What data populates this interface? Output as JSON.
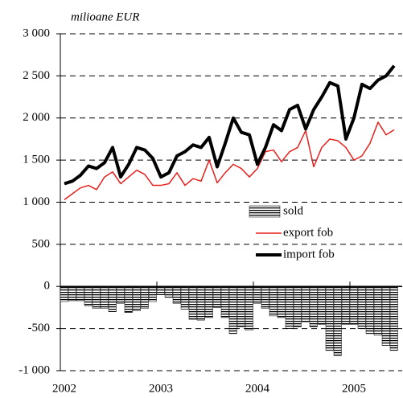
{
  "chart_data": {
    "type": "bar-line",
    "y_label": "milioane EUR",
    "categories": [
      "2002",
      null,
      null,
      null,
      null,
      null,
      null,
      null,
      null,
      null,
      null,
      null,
      "2003",
      null,
      null,
      null,
      null,
      null,
      null,
      null,
      null,
      null,
      null,
      null,
      "2004",
      null,
      null,
      null,
      null,
      null,
      null,
      null,
      null,
      null,
      null,
      null,
      "2005",
      null,
      null,
      null,
      null,
      null
    ],
    "series": [
      {
        "name": "sold",
        "type": "bar",
        "color": "#000000",
        "values": [
          -180,
          -170,
          -170,
          -230,
          -260,
          -260,
          -300,
          -200,
          -310,
          -290,
          -260,
          -180,
          -100,
          -130,
          -200,
          -270,
          -390,
          -400,
          -370,
          -250,
          -370,
          -560,
          -480,
          -520,
          -200,
          -260,
          -350,
          -370,
          -500,
          -480,
          -420,
          -480,
          -450,
          -760,
          -820,
          -450,
          -450,
          -500,
          -560,
          -580,
          -700,
          -760
        ]
      },
      {
        "name": "export fob",
        "type": "line",
        "color": "#e8201c",
        "values": [
          1030,
          1100,
          1170,
          1200,
          1150,
          1300,
          1360,
          1220,
          1300,
          1380,
          1330,
          1200,
          1200,
          1220,
          1350,
          1200,
          1280,
          1250,
          1500,
          1230,
          1350,
          1450,
          1400,
          1300,
          1400,
          1600,
          1620,
          1480,
          1600,
          1650,
          1850,
          1420,
          1650,
          1750,
          1730,
          1650,
          1500,
          1550,
          1700,
          1950,
          1800,
          1860
        ]
      },
      {
        "name": "import fob",
        "type": "line",
        "color": "#000000",
        "values": [
          1220,
          1250,
          1320,
          1430,
          1400,
          1470,
          1650,
          1300,
          1450,
          1650,
          1620,
          1520,
          1300,
          1350,
          1550,
          1600,
          1680,
          1650,
          1770,
          1420,
          1700,
          2000,
          1830,
          1800,
          1450,
          1650,
          1920,
          1850,
          2100,
          2150,
          1870,
          2100,
          2250,
          2420,
          2380,
          1750,
          2000,
          2400,
          2350,
          2450,
          2500,
          2620
        ]
      }
    ],
    "ylim": [
      -1000,
      3000
    ],
    "yticks": [
      {
        "value": -1000,
        "label": "-1 000"
      },
      {
        "value": -500,
        "label": "-500"
      },
      0,
      500,
      {
        "value": 1000,
        "label": "1 000"
      },
      {
        "value": 1500,
        "label": "1 500"
      },
      {
        "value": 2000,
        "label": "2 000"
      },
      {
        "value": 2500,
        "label": "2 500"
      },
      {
        "value": 3000,
        "label": "3 000"
      }
    ],
    "grid": true
  }
}
